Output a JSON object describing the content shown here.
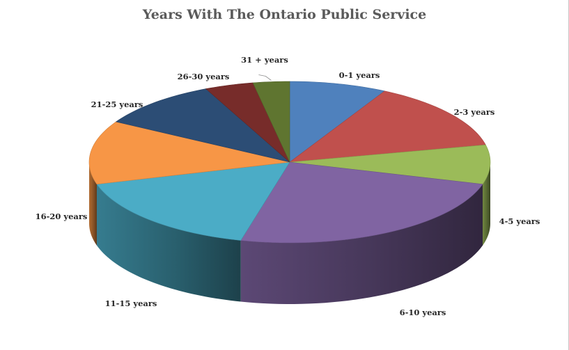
{
  "chart_data": {
    "type": "pie",
    "title": "Years With The Ontario Public Service",
    "slices": [
      {
        "label": "0-1 years",
        "value": 8,
        "color": "#4f81bd"
      },
      {
        "label": "2-3 years",
        "value": 14,
        "color": "#c0504d"
      },
      {
        "label": "4-5 years",
        "value": 8,
        "color": "#9bbb59"
      },
      {
        "label": "6-10 years",
        "value": 25,
        "color": "#8064a2"
      },
      {
        "label": "11-15 years",
        "value": 17,
        "color": "#4bacc6"
      },
      {
        "label": "16-20 years",
        "value": 13,
        "color": "#f79646"
      },
      {
        "label": "21-25 years",
        "value": 10,
        "color": "#2c4d75"
      },
      {
        "label": "26-30 years",
        "value": 4,
        "color": "#772c2a"
      },
      {
        "label": "31 + years",
        "value": 3,
        "color": "#5f7530"
      }
    ],
    "legend": "none",
    "style": "3d-pie"
  }
}
